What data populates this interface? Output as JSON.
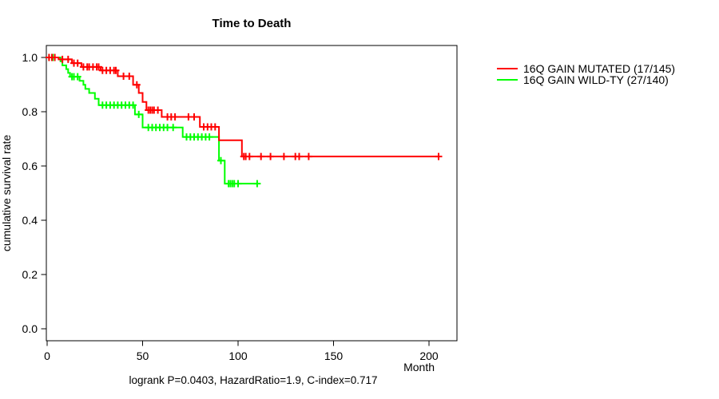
{
  "page": {
    "background": "#ffffff"
  },
  "chart_data": {
    "type": "line",
    "subtype": "kaplan-meier-step-curve",
    "title": "Time to Death",
    "ylabel": "cumulative survival rate",
    "xlabel": "Month",
    "annotation": "logrank P=0.0403, HazardRatio=1.9, C-index=0.717",
    "grid": false,
    "legend_position": "right-outside-top",
    "axis_color": "#000000",
    "xlim": [
      0,
      215
    ],
    "ylim": [
      0,
      1.04
    ],
    "xticks": [
      0,
      50,
      100,
      150,
      200
    ],
    "yticks": [
      0.0,
      0.2,
      0.4,
      0.6,
      0.8,
      1.0
    ],
    "ytick_labels": [
      "0.0",
      "0.2",
      "0.4",
      "0.6",
      "0.8",
      "1.0"
    ],
    "series": [
      {
        "name": "16Q GAIN MUTATED (17/145)",
        "color": "#ff0000",
        "start": [
          0,
          1.0
        ],
        "steps": [
          [
            6,
            0.993
          ],
          [
            13,
            0.979
          ],
          [
            18,
            0.965
          ],
          [
            28,
            0.952
          ],
          [
            37,
            0.931
          ],
          [
            45,
            0.899
          ],
          [
            48,
            0.869
          ],
          [
            50,
            0.836
          ],
          [
            52,
            0.806
          ],
          [
            60,
            0.781
          ],
          [
            80,
            0.744
          ],
          [
            90,
            0.695
          ],
          [
            102,
            0.635
          ]
        ],
        "censor_times": [
          1,
          2.5,
          4,
          8,
          11,
          14,
          16,
          19,
          21,
          22,
          24,
          26,
          27,
          29,
          31,
          33,
          35,
          36,
          40,
          43,
          47,
          53,
          54,
          55,
          56,
          58,
          63,
          65,
          67,
          74,
          77,
          82,
          84,
          86,
          88,
          103,
          104,
          106,
          112,
          117,
          124,
          130,
          132,
          137,
          205
        ],
        "end_month": 205
      },
      {
        "name": "16Q GAIN WILD-TY (27/140)",
        "color": "#00ff00",
        "start": [
          0,
          1.0
        ],
        "steps": [
          [
            7,
            0.986
          ],
          [
            8,
            0.971
          ],
          [
            10,
            0.957
          ],
          [
            11,
            0.943
          ],
          [
            12,
            0.929
          ],
          [
            17,
            0.914
          ],
          [
            19,
            0.899
          ],
          [
            20,
            0.884
          ],
          [
            22,
            0.869
          ],
          [
            25,
            0.848
          ],
          [
            27,
            0.824
          ],
          [
            46,
            0.79
          ],
          [
            50,
            0.742
          ],
          [
            71,
            0.707
          ],
          [
            90,
            0.62
          ],
          [
            93,
            0.535
          ]
        ],
        "censor_times": [
          1,
          3,
          13,
          14,
          16,
          29,
          31,
          33,
          35,
          37,
          39,
          41,
          43,
          45,
          48,
          53,
          55,
          57,
          59,
          61,
          63,
          66,
          73,
          75,
          77,
          79,
          81,
          83,
          85,
          91,
          95,
          96,
          97,
          98,
          100,
          110
        ],
        "end_month": 110
      }
    ]
  }
}
